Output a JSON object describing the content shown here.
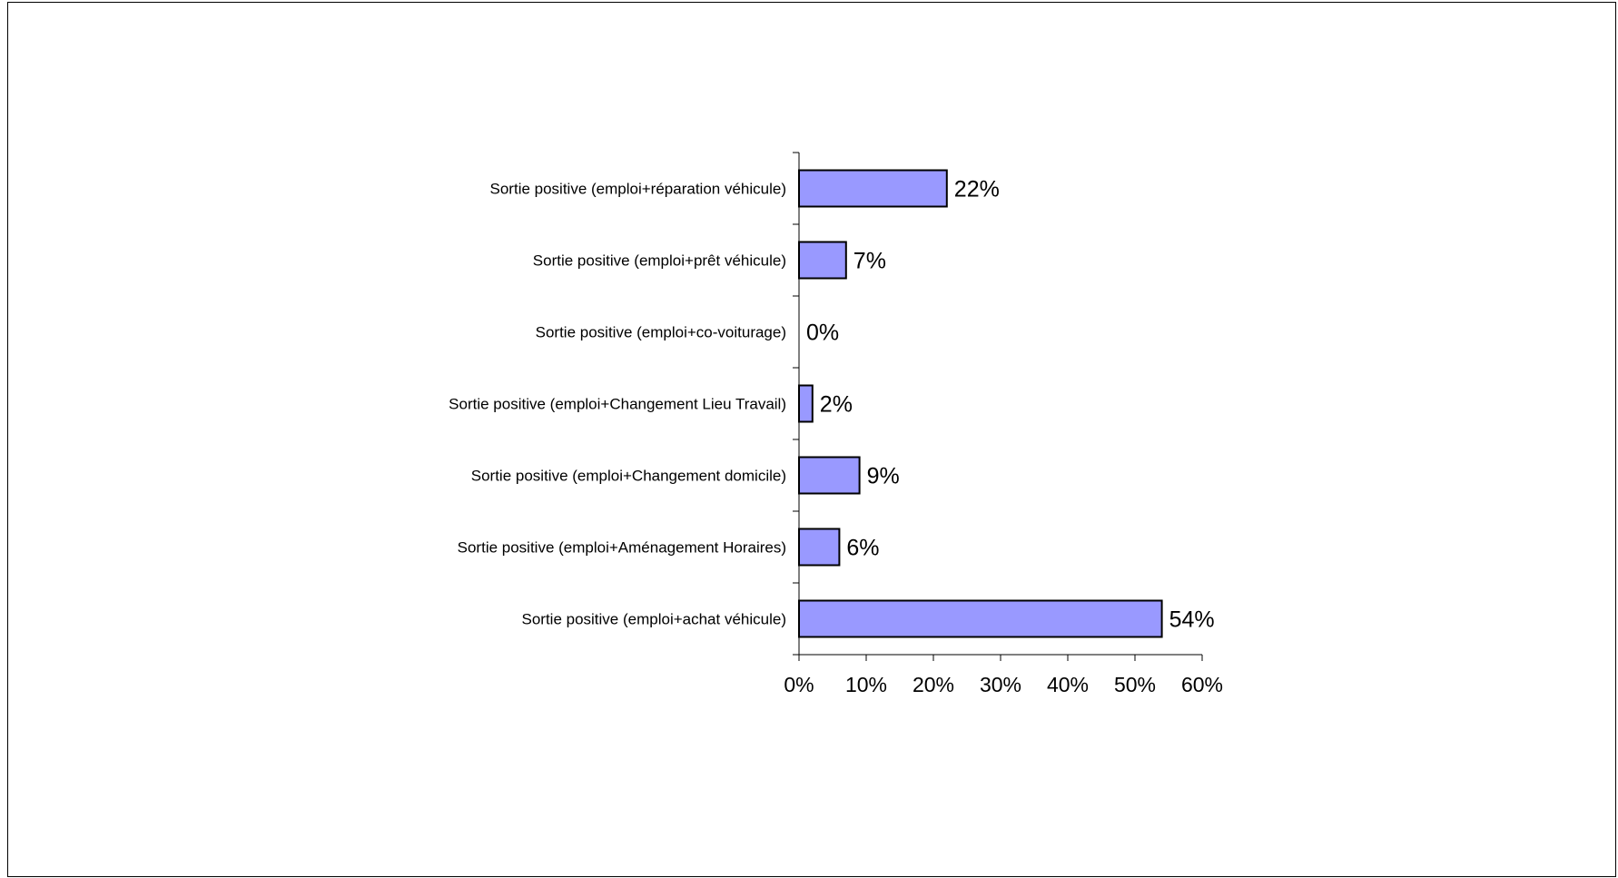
{
  "chart_data": {
    "type": "bar",
    "orientation": "horizontal",
    "categories": [
      "Sortie positive (emploi+réparation véhicule)",
      "Sortie positive (emploi+prêt véhicule)",
      "Sortie positive (emploi+co-voiturage)",
      "Sortie positive (emploi+Changement Lieu Travail)",
      "Sortie positive (emploi+Changement domicile)",
      "Sortie positive (emploi+Aménagement Horaires)",
      "Sortie positive (emploi+achat véhicule)"
    ],
    "values": [
      22,
      7,
      0,
      2,
      9,
      6,
      54
    ],
    "data_labels": [
      "22%",
      "7%",
      "0%",
      "2%",
      "9%",
      "6%",
      "54%"
    ],
    "xlim": [
      0,
      60
    ],
    "x_ticks": [
      0,
      10,
      20,
      30,
      40,
      50,
      60
    ],
    "x_tick_labels": [
      "0%",
      "10%",
      "20%",
      "30%",
      "40%",
      "50%",
      "60%"
    ],
    "grid": false,
    "legend": "none",
    "bar_color": "#9999ff",
    "bar_edge_color": "#000000"
  }
}
